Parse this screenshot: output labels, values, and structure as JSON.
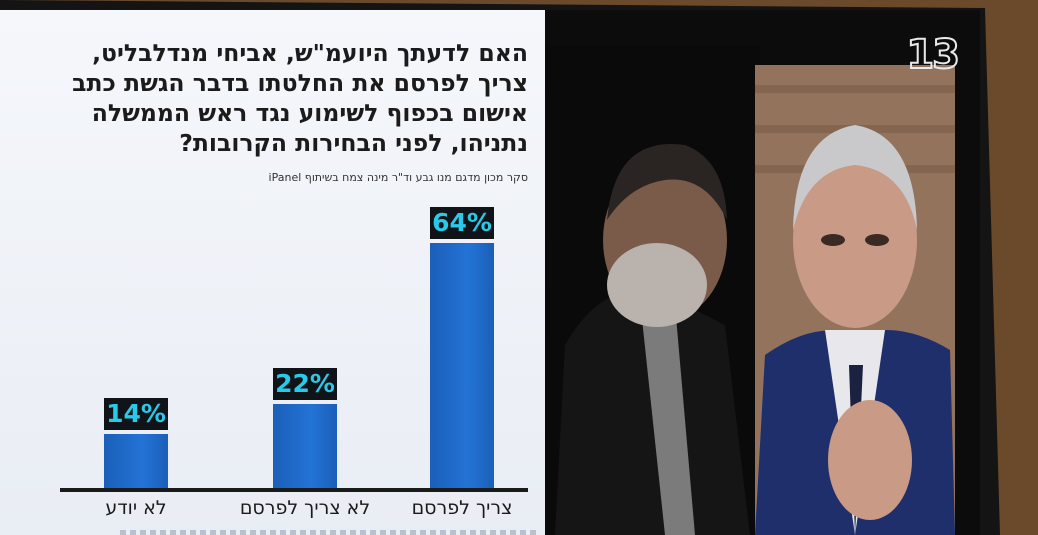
{
  "question": "האם לדעתך היועמ\"ש, אביחי מנדלבליט, צריך לפרסם את החלטתו בדבר הגשת כתב אישום בכפוף לשימוע נגד ראש הממשלה נתניהו, לפני הבחירות הקרובות?",
  "source_note": "סקר מכון מדגם מנו גבע וד\"ר מינה צמח בשיתוף iPanel",
  "channel_logo": "13",
  "colors": {
    "bar": "#2373d6",
    "label_bg": "#101418",
    "label_text": "#29c9e9"
  },
  "chart_data": {
    "type": "bar",
    "title": "האם לדעתך היועמ\"ש, אביחי מנדלבליט, צריך לפרסם את החלטתו בדבר הגשת כתב אישום בכפוף לשימוע נגד ראש הממשלה נתניהו, לפני הבחירות הקרובות?",
    "categories": [
      "לא יודע",
      "לא צריך לפרסם",
      "צריך לפרסם"
    ],
    "values": [
      14,
      22,
      64
    ],
    "value_labels": [
      "14%",
      "22%",
      "64%"
    ],
    "ylim": [
      0,
      64
    ],
    "grid": false,
    "legend": "none"
  }
}
